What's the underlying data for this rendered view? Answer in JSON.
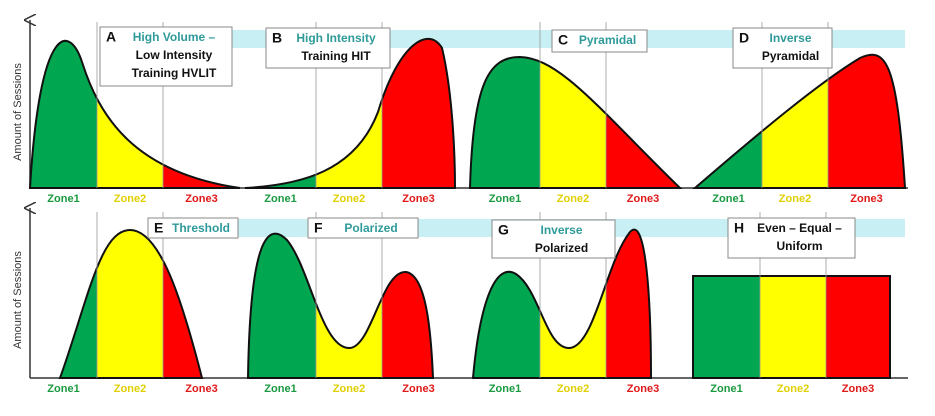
{
  "y_axis_labels": [
    "Amount of Sessions",
    "Amount of Sessions"
  ],
  "panels": [
    {
      "letter": "A",
      "title": [
        "High Volume –",
        "Low Intensity",
        "Training HVLIT"
      ],
      "zones": [
        "Zone1",
        "Zone2",
        "Zone3"
      ]
    },
    {
      "letter": "B",
      "title": [
        "High Intensity",
        "Training HIT"
      ],
      "zones": [
        "Zone1",
        "Zone2",
        "Zone3"
      ]
    },
    {
      "letter": "C",
      "title": [
        "Pyramidal"
      ],
      "zones": [
        "Zone1",
        "Zone2",
        "Zone3"
      ]
    },
    {
      "letter": "D",
      "title": [
        "Inverse",
        "Pyramidal"
      ],
      "zones": [
        "Zone1",
        "Zone2",
        "Zone3"
      ]
    },
    {
      "letter": "E",
      "title": [
        "Threshold"
      ],
      "zones": [
        "Zone1",
        "Zone2",
        "Zone3"
      ]
    },
    {
      "letter": "F",
      "title": [
        "Polarized"
      ],
      "zones": [
        "Zone1",
        "Zone2",
        "Zone3"
      ]
    },
    {
      "letter": "G",
      "title": [
        "Inverse",
        "Polarized"
      ],
      "zones": [
        "Zone1",
        "Zone2",
        "Zone3"
      ]
    },
    {
      "letter": "H",
      "title": [
        "Even – Equal –",
        "Uniform"
      ],
      "zones": [
        "Zone1",
        "Zone2",
        "Zone3"
      ]
    }
  ]
}
